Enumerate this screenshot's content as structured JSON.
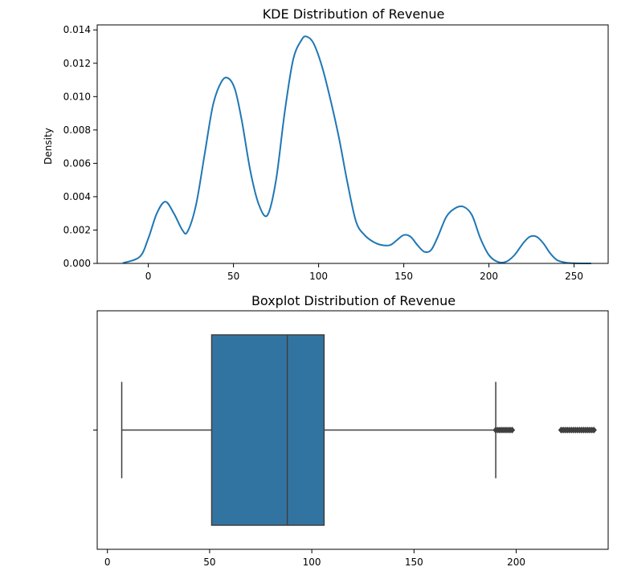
{
  "chart_data": [
    {
      "type": "area",
      "title": "KDE Distribution of Revenue",
      "xlabel": "",
      "ylabel": "Density",
      "xlim": [
        -30,
        270
      ],
      "ylim": [
        0,
        0.0143
      ],
      "x_ticks": [
        0,
        50,
        100,
        150,
        200,
        250
      ],
      "y_ticks": [
        0.0,
        0.002,
        0.004,
        0.006,
        0.008,
        0.01,
        0.012,
        0.014
      ],
      "y_tick_labels": [
        "0.000",
        "0.002",
        "0.004",
        "0.006",
        "0.008",
        "0.010",
        "0.012",
        "0.014"
      ],
      "grid": false,
      "color": "#1f77b4",
      "series": [
        {
          "x": [
            -15,
            -5,
            0,
            5,
            10,
            15,
            20,
            23,
            28,
            33,
            38,
            43,
            47,
            51,
            55,
            60,
            65,
            70,
            75,
            80,
            85,
            90,
            93,
            97,
            102,
            107,
            112,
            117,
            122,
            127,
            132,
            137,
            142,
            146,
            150,
            154,
            158,
            162,
            166,
            170,
            175,
            180,
            185,
            190,
            195,
            200,
            205,
            210,
            215,
            220,
            224,
            228,
            232,
            236,
            240,
            245,
            250,
            255,
            260
          ],
          "y": [
            2e-05,
            0.0004,
            0.0015,
            0.003,
            0.0037,
            0.003,
            0.002,
            0.0019,
            0.0035,
            0.0065,
            0.0095,
            0.0109,
            0.0111,
            0.0104,
            0.0085,
            0.0055,
            0.0035,
            0.0029,
            0.005,
            0.009,
            0.0122,
            0.0134,
            0.0136,
            0.0132,
            0.0118,
            0.0098,
            0.0075,
            0.0048,
            0.0025,
            0.0017,
            0.0013,
            0.0011,
            0.0011,
            0.0014,
            0.0017,
            0.0016,
            0.0011,
            0.0007,
            0.0008,
            0.0016,
            0.0028,
            0.0033,
            0.0034,
            0.0029,
            0.0015,
            0.0005,
            0.0001,
            0.0001,
            0.0005,
            0.0012,
            0.0016,
            0.0016,
            0.0012,
            0.0006,
            0.0002,
            5e-05,
            1e-05,
            0.0,
            0.0
          ]
        }
      ]
    },
    {
      "type": "boxplot",
      "title": "Boxplot Distribution of Revenue",
      "xlabel": "",
      "ylabel": "",
      "xlim": [
        -5,
        245
      ],
      "x_ticks": [
        0,
        50,
        100,
        150,
        200
      ],
      "grid": false,
      "color": "#3274a1",
      "whisker_low": 7,
      "q1": 51,
      "median": 88,
      "q3": 106,
      "whisker_high": 190,
      "outliers": [
        190,
        191,
        192,
        193,
        194,
        195,
        196,
        197,
        198,
        222,
        223,
        224,
        225,
        226,
        227,
        228,
        229,
        230,
        231,
        232,
        233,
        234,
        235,
        236,
        237,
        238
      ]
    }
  ]
}
